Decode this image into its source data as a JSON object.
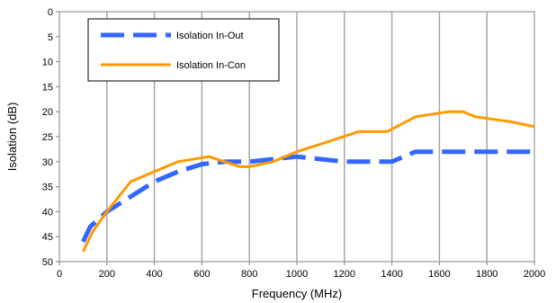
{
  "chart_data": {
    "type": "line",
    "xlabel": "Frequency (MHz)",
    "ylabel": "Isolation (dB)",
    "xlim": [
      0,
      2000
    ],
    "ylim": [
      0,
      50
    ],
    "y_inverted": true,
    "x_ticks": [
      0,
      200,
      400,
      600,
      800,
      1000,
      1200,
      1400,
      1600,
      1800,
      2000
    ],
    "y_ticks": [
      0,
      5,
      10,
      15,
      20,
      25,
      30,
      35,
      40,
      45,
      50
    ],
    "grid": "vertical",
    "legend_position": "top-left",
    "series": [
      {
        "name": "Isolation In-Out",
        "color": "#3366ff",
        "style": "dashed",
        "x": [
          100,
          130,
          200,
          300,
          400,
          500,
          600,
          700,
          800,
          900,
          1000,
          1100,
          1200,
          1300,
          1400,
          1500,
          1600,
          1700,
          1800,
          1900,
          2000
        ],
        "y": [
          46,
          43,
          40,
          37,
          34,
          32,
          30.5,
          30,
          30,
          29.5,
          29,
          29.5,
          30,
          30,
          30,
          28,
          28,
          28,
          28,
          28,
          28
        ]
      },
      {
        "name": "Isolation In-Con",
        "color": "#ff9900",
        "style": "solid",
        "x": [
          100,
          140,
          200,
          300,
          400,
          500,
          630,
          760,
          800,
          900,
          1000,
          1100,
          1260,
          1380,
          1500,
          1640,
          1700,
          1750,
          1900,
          2000
        ],
        "y": [
          48,
          44,
          40,
          34,
          32,
          30,
          29,
          31,
          31,
          30,
          28,
          26.5,
          24,
          24,
          21,
          20,
          20,
          21,
          22,
          23
        ]
      }
    ]
  }
}
